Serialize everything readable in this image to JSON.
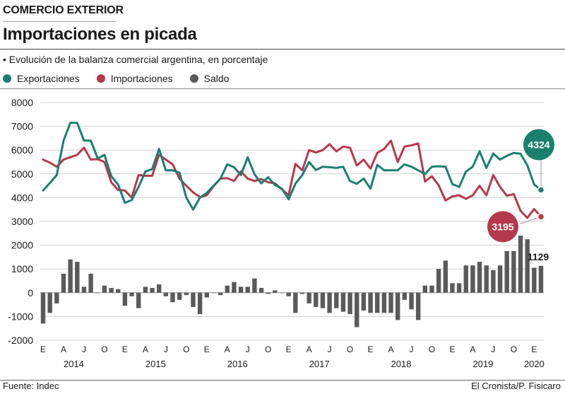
{
  "header": {
    "section": "COMERCIO EXTERIOR",
    "title": "Importaciones en picada",
    "subtitle": "• Evolución de la balanza comercial argentina, en porcentaje"
  },
  "footer": {
    "source": "Fuente: Indec",
    "credit": "El Cronista/P. Fisicaro"
  },
  "chart_data": {
    "type": "line",
    "title": "Importaciones en picada",
    "subtitle": "Evolución de la balanza comercial argentina, en porcentaje",
    "ylim": [
      -2000,
      8000
    ],
    "yticks": [
      -2000,
      -1000,
      0,
      1000,
      2000,
      3000,
      4000,
      5000,
      6000,
      7000,
      8000
    ],
    "ytick_labels": [
      "-2000",
      "-1000",
      "0",
      "1000",
      "2000",
      "3000",
      "4000",
      "5000",
      "6000",
      "7000",
      "8000"
    ],
    "grid": true,
    "legend_position": "top-left",
    "month_ticks": [
      {
        "index": 0,
        "label": "E"
      },
      {
        "index": 3,
        "label": "A"
      },
      {
        "index": 6,
        "label": "J"
      },
      {
        "index": 9,
        "label": "O"
      },
      {
        "index": 12,
        "label": "E"
      },
      {
        "index": 15,
        "label": "A"
      },
      {
        "index": 18,
        "label": "J"
      },
      {
        "index": 21,
        "label": "O"
      },
      {
        "index": 24,
        "label": "E"
      },
      {
        "index": 27,
        "label": "A"
      },
      {
        "index": 30,
        "label": "J"
      },
      {
        "index": 33,
        "label": "O"
      },
      {
        "index": 36,
        "label": "E"
      },
      {
        "index": 39,
        "label": "A"
      },
      {
        "index": 42,
        "label": "J"
      },
      {
        "index": 45,
        "label": "O"
      },
      {
        "index": 48,
        "label": "E"
      },
      {
        "index": 51,
        "label": "A"
      },
      {
        "index": 54,
        "label": "J"
      },
      {
        "index": 57,
        "label": "O"
      },
      {
        "index": 60,
        "label": "E"
      },
      {
        "index": 63,
        "label": "A"
      },
      {
        "index": 66,
        "label": "J"
      },
      {
        "index": 69,
        "label": "O"
      },
      {
        "index": 72,
        "label": "E"
      }
    ],
    "year_labels": [
      {
        "center": 4.5,
        "label": "2014"
      },
      {
        "center": 16.5,
        "label": "2015"
      },
      {
        "center": 28.5,
        "label": "2016"
      },
      {
        "center": 40.5,
        "label": "2017"
      },
      {
        "center": 52.5,
        "label": "2018"
      },
      {
        "center": 64.5,
        "label": "2019"
      },
      {
        "center": 72,
        "label": "2020"
      }
    ],
    "series": [
      {
        "name": "Exportaciones",
        "type": "line",
        "color": "#1b7f6e",
        "values": [
          4300,
          4620,
          4950,
          6400,
          7150,
          7150,
          6400,
          6400,
          5650,
          5800,
          4900,
          4550,
          3780,
          3900,
          4450,
          5100,
          5200,
          6050,
          5150,
          5150,
          5050,
          4000,
          3500,
          4000,
          4200,
          4500,
          4800,
          5400,
          5280,
          4950,
          5700,
          4980,
          4600,
          4860,
          4530,
          4380,
          3930,
          4590,
          4950,
          5500,
          5160,
          5300,
          5280,
          5250,
          5300,
          4700,
          4580,
          4800,
          4380,
          5380,
          5150,
          5150,
          5150,
          5400,
          5300,
          5150,
          5000,
          5300,
          5320,
          5300,
          4570,
          4450,
          5100,
          5300,
          5950,
          5250,
          5850,
          5600,
          5760,
          5880,
          5850,
          5360,
          4550,
          4324
        ],
        "end_label": "4324"
      },
      {
        "name": "Importaciones",
        "type": "line",
        "color": "#b5394d",
        "values": [
          5600,
          5470,
          5300,
          5600,
          5700,
          5800,
          6100,
          5600,
          5620,
          5500,
          4650,
          4320,
          4300,
          4000,
          4950,
          4920,
          4920,
          5800,
          5600,
          5400,
          4800,
          4500,
          4220,
          4020,
          4100,
          4480,
          4800,
          4820,
          4700,
          5100,
          4800,
          4700,
          4780,
          4650,
          4600,
          4350,
          4100,
          5420,
          5150,
          6000,
          5900,
          6000,
          6250,
          5950,
          6150,
          6100,
          5350,
          5600,
          5220,
          5880,
          6050,
          6400,
          5500,
          6150,
          6200,
          6280,
          4680,
          4900,
          4520,
          3880,
          4050,
          4100,
          3950,
          4100,
          4500,
          4100,
          4950,
          4450,
          4080,
          4150,
          3450,
          3150,
          3520,
          3195
        ],
        "end_label": "3195"
      },
      {
        "name": "Saldo",
        "type": "bar",
        "color": "#5a5a5a",
        "values": [
          -1300,
          -850,
          -450,
          800,
          1400,
          1300,
          250,
          800,
          0,
          300,
          200,
          150,
          -550,
          -150,
          -650,
          250,
          200,
          350,
          -150,
          -400,
          -300,
          -100,
          -600,
          -900,
          -200,
          0,
          -100,
          300,
          450,
          250,
          250,
          600,
          200,
          -50,
          100,
          0,
          -150,
          -850,
          -50,
          -450,
          -600,
          -650,
          -850,
          -650,
          -800,
          -900,
          -1450,
          -750,
          -850,
          -850,
          -850,
          -850,
          -1150,
          -300,
          -700,
          -1150,
          300,
          300,
          1000,
          1350,
          400,
          400,
          1150,
          1150,
          1300,
          1150,
          950,
          1150,
          1750,
          1750,
          2400,
          2250,
          1050,
          1129
        ],
        "end_label": "1129"
      }
    ]
  }
}
